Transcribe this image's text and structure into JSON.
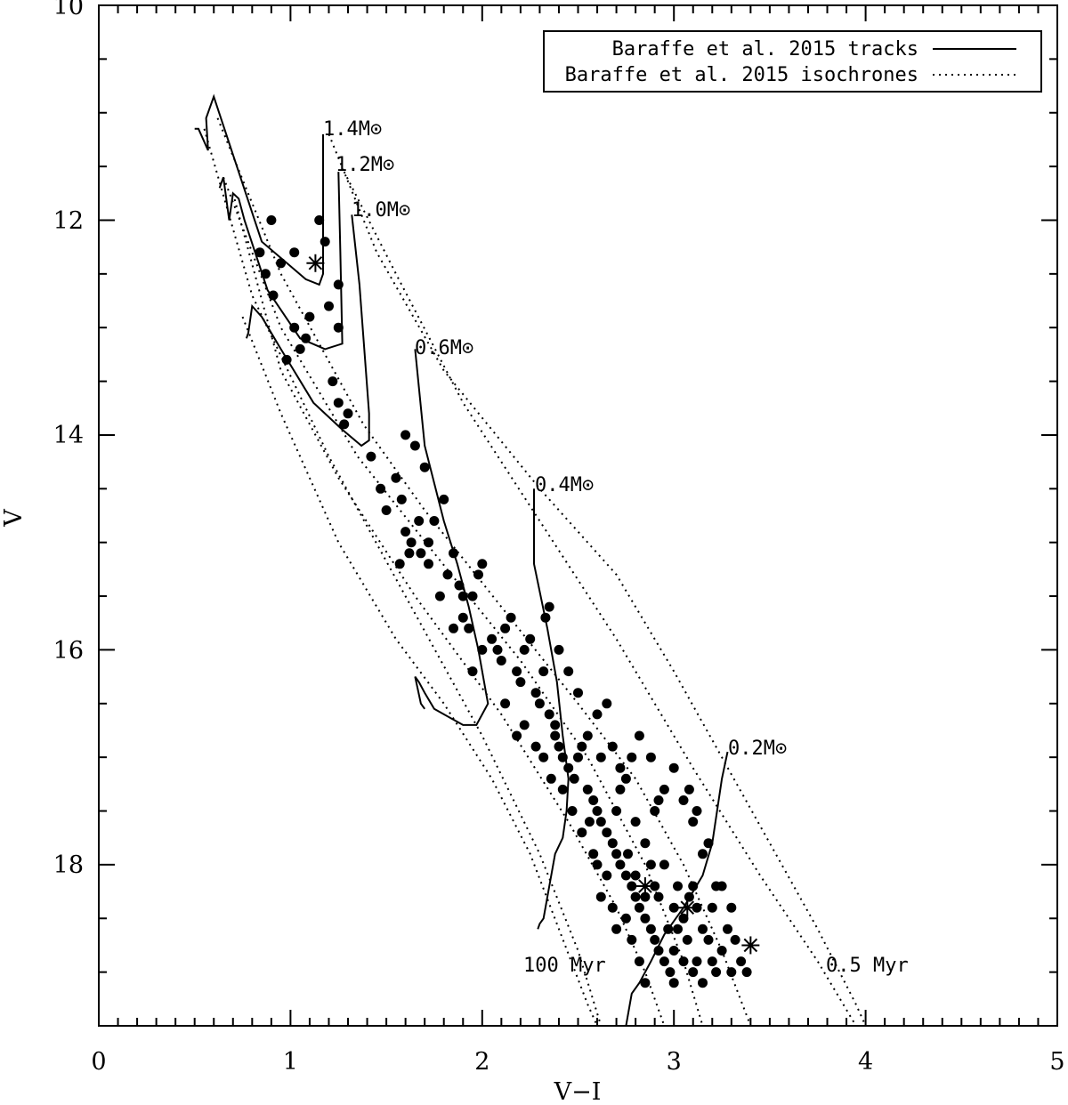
{
  "chart_data": {
    "type": "scatter",
    "xlabel": "V−I",
    "ylabel": "V",
    "xlim": [
      0,
      5
    ],
    "ylim": [
      19.5,
      10
    ],
    "y_inverted": true,
    "x_ticks": [
      "0",
      "1",
      "2",
      "3",
      "4",
      "5"
    ],
    "y_ticks": [
      "10",
      "12",
      "14",
      "16",
      "18"
    ],
    "legend_position": "top-right",
    "legend": [
      {
        "label": "Baraffe et al. 2015 tracks",
        "style": "solid"
      },
      {
        "label": "Baraffe et al. 2015 isochrones",
        "style": "dotted"
      }
    ],
    "track_labels": [
      "1.4M⊙",
      "1.2M⊙",
      "1.0M⊙",
      "0.6M⊙",
      "0.4M⊙",
      "0.2M⊙"
    ],
    "isochrone_labels": [
      "100 Myr",
      "0.5 Myr"
    ],
    "tracks": [
      {
        "mass": "1.4",
        "points": [
          [
            1.17,
            11.2
          ],
          [
            1.17,
            12.5
          ],
          [
            1.15,
            12.6
          ],
          [
            1.08,
            12.55
          ],
          [
            0.85,
            12.2
          ],
          [
            0.6,
            10.85
          ],
          [
            0.56,
            11.05
          ],
          [
            0.57,
            11.35
          ],
          [
            0.52,
            11.15
          ],
          [
            0.5,
            11.15
          ]
        ]
      },
      {
        "mass": "1.2",
        "points": [
          [
            1.25,
            11.55
          ],
          [
            1.26,
            12.3
          ],
          [
            1.27,
            13.15
          ],
          [
            1.18,
            13.2
          ],
          [
            1.05,
            13.1
          ],
          [
            0.88,
            12.65
          ],
          [
            0.76,
            12.0
          ],
          [
            0.73,
            11.8
          ],
          [
            0.7,
            11.75
          ],
          [
            0.68,
            12.0
          ],
          [
            0.65,
            11.6
          ],
          [
            0.63,
            11.7
          ]
        ]
      },
      {
        "mass": "1.0",
        "points": [
          [
            1.32,
            11.95
          ],
          [
            1.36,
            12.6
          ],
          [
            1.41,
            13.8
          ],
          [
            1.41,
            14.05
          ],
          [
            1.37,
            14.1
          ],
          [
            1.27,
            13.95
          ],
          [
            1.12,
            13.7
          ],
          [
            0.95,
            13.2
          ],
          [
            0.85,
            12.9
          ],
          [
            0.8,
            12.8
          ],
          [
            0.78,
            13.05
          ],
          [
            0.77,
            13.1
          ]
        ]
      },
      {
        "mass": "0.6",
        "points": [
          [
            1.65,
            13.2
          ],
          [
            1.7,
            14.1
          ],
          [
            1.8,
            14.8
          ],
          [
            1.87,
            15.2
          ],
          [
            1.93,
            15.6
          ],
          [
            1.98,
            16.0
          ],
          [
            2.02,
            16.4
          ],
          [
            2.03,
            16.5
          ],
          [
            1.97,
            16.7
          ],
          [
            1.9,
            16.7
          ],
          [
            1.75,
            16.55
          ],
          [
            1.7,
            16.4
          ],
          [
            1.67,
            16.3
          ],
          [
            1.65,
            16.25
          ],
          [
            1.68,
            16.5
          ],
          [
            1.7,
            16.55
          ]
        ]
      },
      {
        "mass": "0.4",
        "points": [
          [
            2.27,
            14.5
          ],
          [
            2.27,
            15.2
          ],
          [
            2.34,
            15.8
          ],
          [
            2.39,
            16.3
          ],
          [
            2.42,
            16.8
          ],
          [
            2.45,
            17.2
          ],
          [
            2.44,
            17.5
          ],
          [
            2.42,
            17.75
          ],
          [
            2.38,
            17.9
          ],
          [
            2.35,
            18.2
          ],
          [
            2.32,
            18.5
          ],
          [
            2.3,
            18.55
          ],
          [
            2.29,
            18.6
          ]
        ]
      },
      {
        "mass": "0.2",
        "points": [
          [
            3.28,
            16.95
          ],
          [
            3.25,
            17.2
          ],
          [
            3.2,
            17.8
          ],
          [
            3.15,
            18.1
          ],
          [
            3.05,
            18.4
          ],
          [
            2.95,
            18.65
          ],
          [
            2.88,
            18.9
          ],
          [
            2.82,
            19.1
          ],
          [
            2.78,
            19.2
          ],
          [
            2.75,
            19.5
          ]
        ]
      }
    ],
    "isochrones": [
      {
        "age": "0.5 Myr",
        "points": [
          [
            1.2,
            11.2
          ],
          [
            1.45,
            12.3
          ],
          [
            1.8,
            13.4
          ],
          [
            2.3,
            14.5
          ],
          [
            2.7,
            15.3
          ],
          [
            3.0,
            16.2
          ],
          [
            3.25,
            17.0
          ],
          [
            3.5,
            17.8
          ],
          [
            3.75,
            18.6
          ],
          [
            3.95,
            19.3
          ],
          [
            4.0,
            19.5
          ]
        ]
      },
      {
        "age": "",
        "points": [
          [
            1.28,
            11.55
          ],
          [
            1.55,
            12.5
          ],
          [
            1.9,
            13.7
          ],
          [
            2.3,
            14.8
          ],
          [
            2.7,
            15.9
          ],
          [
            3.1,
            17.1
          ],
          [
            3.45,
            18.1
          ],
          [
            3.75,
            18.9
          ],
          [
            3.95,
            19.5
          ]
        ]
      },
      {
        "age": "",
        "points": [
          [
            0.62,
            11.05
          ],
          [
            0.95,
            12.5
          ],
          [
            1.38,
            13.9
          ],
          [
            1.7,
            14.7
          ],
          [
            2.1,
            15.6
          ],
          [
            2.5,
            16.5
          ],
          [
            2.8,
            17.2
          ],
          [
            3.05,
            18.0
          ],
          [
            3.25,
            18.8
          ],
          [
            3.4,
            19.5
          ]
        ]
      },
      {
        "age": "",
        "points": [
          [
            0.65,
            11.6
          ],
          [
            0.95,
            13.0
          ],
          [
            1.35,
            14.2
          ],
          [
            1.75,
            15.1
          ],
          [
            2.2,
            16.1
          ],
          [
            2.55,
            17.0
          ],
          [
            2.85,
            18.0
          ],
          [
            3.05,
            18.9
          ],
          [
            3.15,
            19.5
          ]
        ]
      },
      {
        "age": "",
        "points": [
          [
            0.7,
            11.75
          ],
          [
            0.95,
            13.4
          ],
          [
            1.25,
            14.4
          ],
          [
            1.65,
            15.5
          ],
          [
            2.1,
            16.6
          ],
          [
            2.45,
            17.6
          ],
          [
            2.7,
            18.4
          ],
          [
            2.85,
            19.0
          ],
          [
            2.95,
            19.5
          ]
        ]
      },
      {
        "age": "100 Myr",
        "points": [
          [
            0.55,
            11.15
          ],
          [
            0.8,
            12.7
          ],
          [
            1.2,
            14.2
          ],
          [
            1.6,
            15.5
          ],
          [
            2.0,
            16.8
          ],
          [
            2.3,
            17.9
          ],
          [
            2.5,
            18.8
          ],
          [
            2.62,
            19.5
          ]
        ]
      },
      {
        "age": "",
        "points": [
          [
            0.75,
            12.9
          ],
          [
            0.95,
            13.8
          ],
          [
            1.25,
            15.0
          ],
          [
            1.55,
            15.9
          ],
          [
            1.8,
            16.5
          ],
          [
            2.05,
            17.2
          ],
          [
            2.25,
            17.9
          ],
          [
            2.4,
            18.6
          ],
          [
            2.55,
            19.3
          ],
          [
            2.6,
            19.5
          ]
        ]
      }
    ],
    "stars": [
      [
        1.1,
        12.9
      ],
      [
        1.15,
        12.0
      ],
      [
        1.2,
        12.8
      ],
      [
        1.25,
        13.0
      ],
      [
        1.05,
        13.2
      ],
      [
        0.98,
        13.3
      ],
      [
        1.22,
        13.5
      ],
      [
        1.25,
        13.7
      ],
      [
        1.3,
        13.8
      ],
      [
        1.28,
        13.9
      ],
      [
        0.84,
        12.3
      ],
      [
        0.87,
        12.5
      ],
      [
        0.91,
        12.7
      ],
      [
        0.95,
        12.4
      ],
      [
        1.02,
        12.3
      ],
      [
        0.9,
        12.0
      ],
      [
        1.18,
        12.2
      ],
      [
        1.02,
        13.0
      ],
      [
        1.08,
        13.1
      ],
      [
        1.25,
        12.6
      ],
      [
        1.42,
        14.2
      ],
      [
        1.47,
        14.5
      ],
      [
        1.5,
        14.7
      ],
      [
        1.55,
        14.4
      ],
      [
        1.58,
        14.6
      ],
      [
        1.6,
        14.0
      ],
      [
        1.65,
        14.1
      ],
      [
        1.7,
        14.3
      ],
      [
        1.6,
        14.9
      ],
      [
        1.63,
        15.0
      ],
      [
        1.68,
        15.1
      ],
      [
        1.72,
        15.2
      ],
      [
        1.75,
        14.8
      ],
      [
        1.8,
        14.6
      ],
      [
        1.82,
        15.3
      ],
      [
        1.85,
        15.1
      ],
      [
        1.88,
        15.4
      ],
      [
        1.9,
        15.7
      ],
      [
        1.93,
        15.8
      ],
      [
        1.95,
        15.5
      ],
      [
        1.98,
        15.3
      ],
      [
        2.0,
        15.2
      ],
      [
        2.05,
        15.9
      ],
      [
        2.08,
        16.0
      ],
      [
        2.1,
        16.1
      ],
      [
        2.12,
        15.8
      ],
      [
        2.15,
        15.7
      ],
      [
        2.18,
        16.2
      ],
      [
        2.2,
        16.3
      ],
      [
        2.22,
        16.0
      ],
      [
        2.25,
        15.9
      ],
      [
        2.28,
        16.4
      ],
      [
        2.3,
        16.5
      ],
      [
        2.32,
        16.2
      ],
      [
        2.33,
        15.7
      ],
      [
        2.35,
        16.6
      ],
      [
        2.38,
        16.7
      ],
      [
        2.4,
        16.9
      ],
      [
        2.42,
        17.0
      ],
      [
        2.45,
        17.1
      ],
      [
        2.48,
        17.2
      ],
      [
        2.5,
        17.0
      ],
      [
        2.52,
        16.9
      ],
      [
        2.55,
        17.3
      ],
      [
        2.58,
        17.4
      ],
      [
        2.6,
        17.5
      ],
      [
        2.62,
        17.6
      ],
      [
        2.65,
        17.7
      ],
      [
        2.68,
        17.8
      ],
      [
        2.7,
        17.9
      ],
      [
        2.72,
        18.0
      ],
      [
        2.75,
        18.1
      ],
      [
        2.78,
        18.2
      ],
      [
        2.8,
        18.3
      ],
      [
        2.82,
        18.4
      ],
      [
        2.85,
        18.5
      ],
      [
        2.88,
        18.6
      ],
      [
        2.9,
        18.7
      ],
      [
        2.92,
        18.8
      ],
      [
        2.95,
        18.9
      ],
      [
        2.98,
        19.0
      ],
      [
        3.0,
        18.8
      ],
      [
        3.02,
        18.6
      ],
      [
        3.05,
        18.5
      ],
      [
        3.08,
        18.3
      ],
      [
        3.1,
        18.2
      ],
      [
        3.12,
        18.4
      ],
      [
        3.15,
        18.6
      ],
      [
        3.18,
        18.7
      ],
      [
        3.2,
        18.9
      ],
      [
        3.22,
        19.0
      ],
      [
        3.25,
        18.8
      ],
      [
        3.28,
        18.6
      ],
      [
        2.7,
        17.5
      ],
      [
        2.72,
        17.3
      ],
      [
        2.75,
        17.2
      ],
      [
        2.8,
        17.6
      ],
      [
        2.85,
        17.8
      ],
      [
        2.9,
        17.5
      ],
      [
        2.95,
        17.3
      ],
      [
        3.0,
        17.1
      ],
      [
        3.05,
        17.4
      ],
      [
        3.1,
        17.6
      ],
      [
        3.15,
        17.9
      ],
      [
        2.6,
        16.6
      ],
      [
        2.65,
        16.5
      ],
      [
        2.55,
        16.8
      ],
      [
        2.5,
        16.4
      ],
      [
        2.45,
        16.2
      ],
      [
        2.4,
        16.0
      ],
      [
        2.35,
        15.6
      ],
      [
        2.62,
        17.0
      ],
      [
        2.68,
        16.9
      ],
      [
        2.72,
        17.1
      ],
      [
        2.78,
        17.0
      ],
      [
        2.82,
        16.8
      ],
      [
        2.88,
        17.0
      ],
      [
        2.92,
        17.4
      ],
      [
        2.58,
        17.9
      ],
      [
        2.62,
        18.3
      ],
      [
        2.65,
        18.1
      ],
      [
        2.68,
        18.4
      ],
      [
        2.7,
        18.6
      ],
      [
        2.75,
        18.5
      ],
      [
        2.78,
        18.7
      ],
      [
        2.82,
        18.9
      ],
      [
        2.85,
        19.1
      ],
      [
        2.9,
        18.2
      ],
      [
        2.95,
        18.0
      ],
      [
        3.0,
        18.4
      ],
      [
        3.05,
        18.9
      ],
      [
        3.1,
        19.0
      ],
      [
        3.15,
        19.1
      ],
      [
        3.2,
        18.4
      ],
      [
        3.25,
        18.2
      ],
      [
        3.3,
        18.4
      ],
      [
        3.3,
        19.0
      ],
      [
        2.88,
        18.0
      ],
      [
        2.92,
        18.3
      ],
      [
        2.97,
        18.6
      ],
      [
        3.02,
        18.2
      ],
      [
        3.07,
        18.7
      ],
      [
        3.12,
        18.9
      ],
      [
        3.0,
        19.1
      ],
      [
        2.85,
        18.3
      ],
      [
        2.8,
        18.1
      ],
      [
        2.76,
        17.9
      ],
      [
        1.9,
        15.5
      ],
      [
        1.95,
        16.2
      ],
      [
        2.0,
        16.0
      ],
      [
        1.85,
        15.8
      ],
      [
        1.78,
        15.5
      ],
      [
        1.72,
        15.0
      ],
      [
        1.67,
        14.8
      ],
      [
        1.62,
        15.1
      ],
      [
        1.57,
        15.2
      ],
      [
        2.12,
        16.5
      ],
      [
        2.18,
        16.8
      ],
      [
        2.22,
        16.7
      ],
      [
        2.28,
        16.9
      ],
      [
        2.32,
        17.0
      ],
      [
        2.36,
        17.2
      ],
      [
        2.38,
        16.8
      ],
      [
        2.42,
        17.3
      ],
      [
        2.47,
        17.5
      ],
      [
        2.52,
        17.7
      ],
      [
        2.56,
        17.6
      ],
      [
        2.6,
        18.0
      ],
      [
        3.32,
        18.7
      ],
      [
        3.35,
        18.9
      ],
      [
        3.38,
        19.0
      ],
      [
        3.22,
        18.2
      ],
      [
        3.18,
        17.8
      ],
      [
        3.12,
        17.5
      ],
      [
        3.08,
        17.3
      ]
    ],
    "asterisks": [
      [
        1.13,
        12.4
      ],
      [
        3.4,
        18.75
      ],
      [
        3.07,
        18.4
      ],
      [
        2.85,
        18.2
      ]
    ]
  }
}
